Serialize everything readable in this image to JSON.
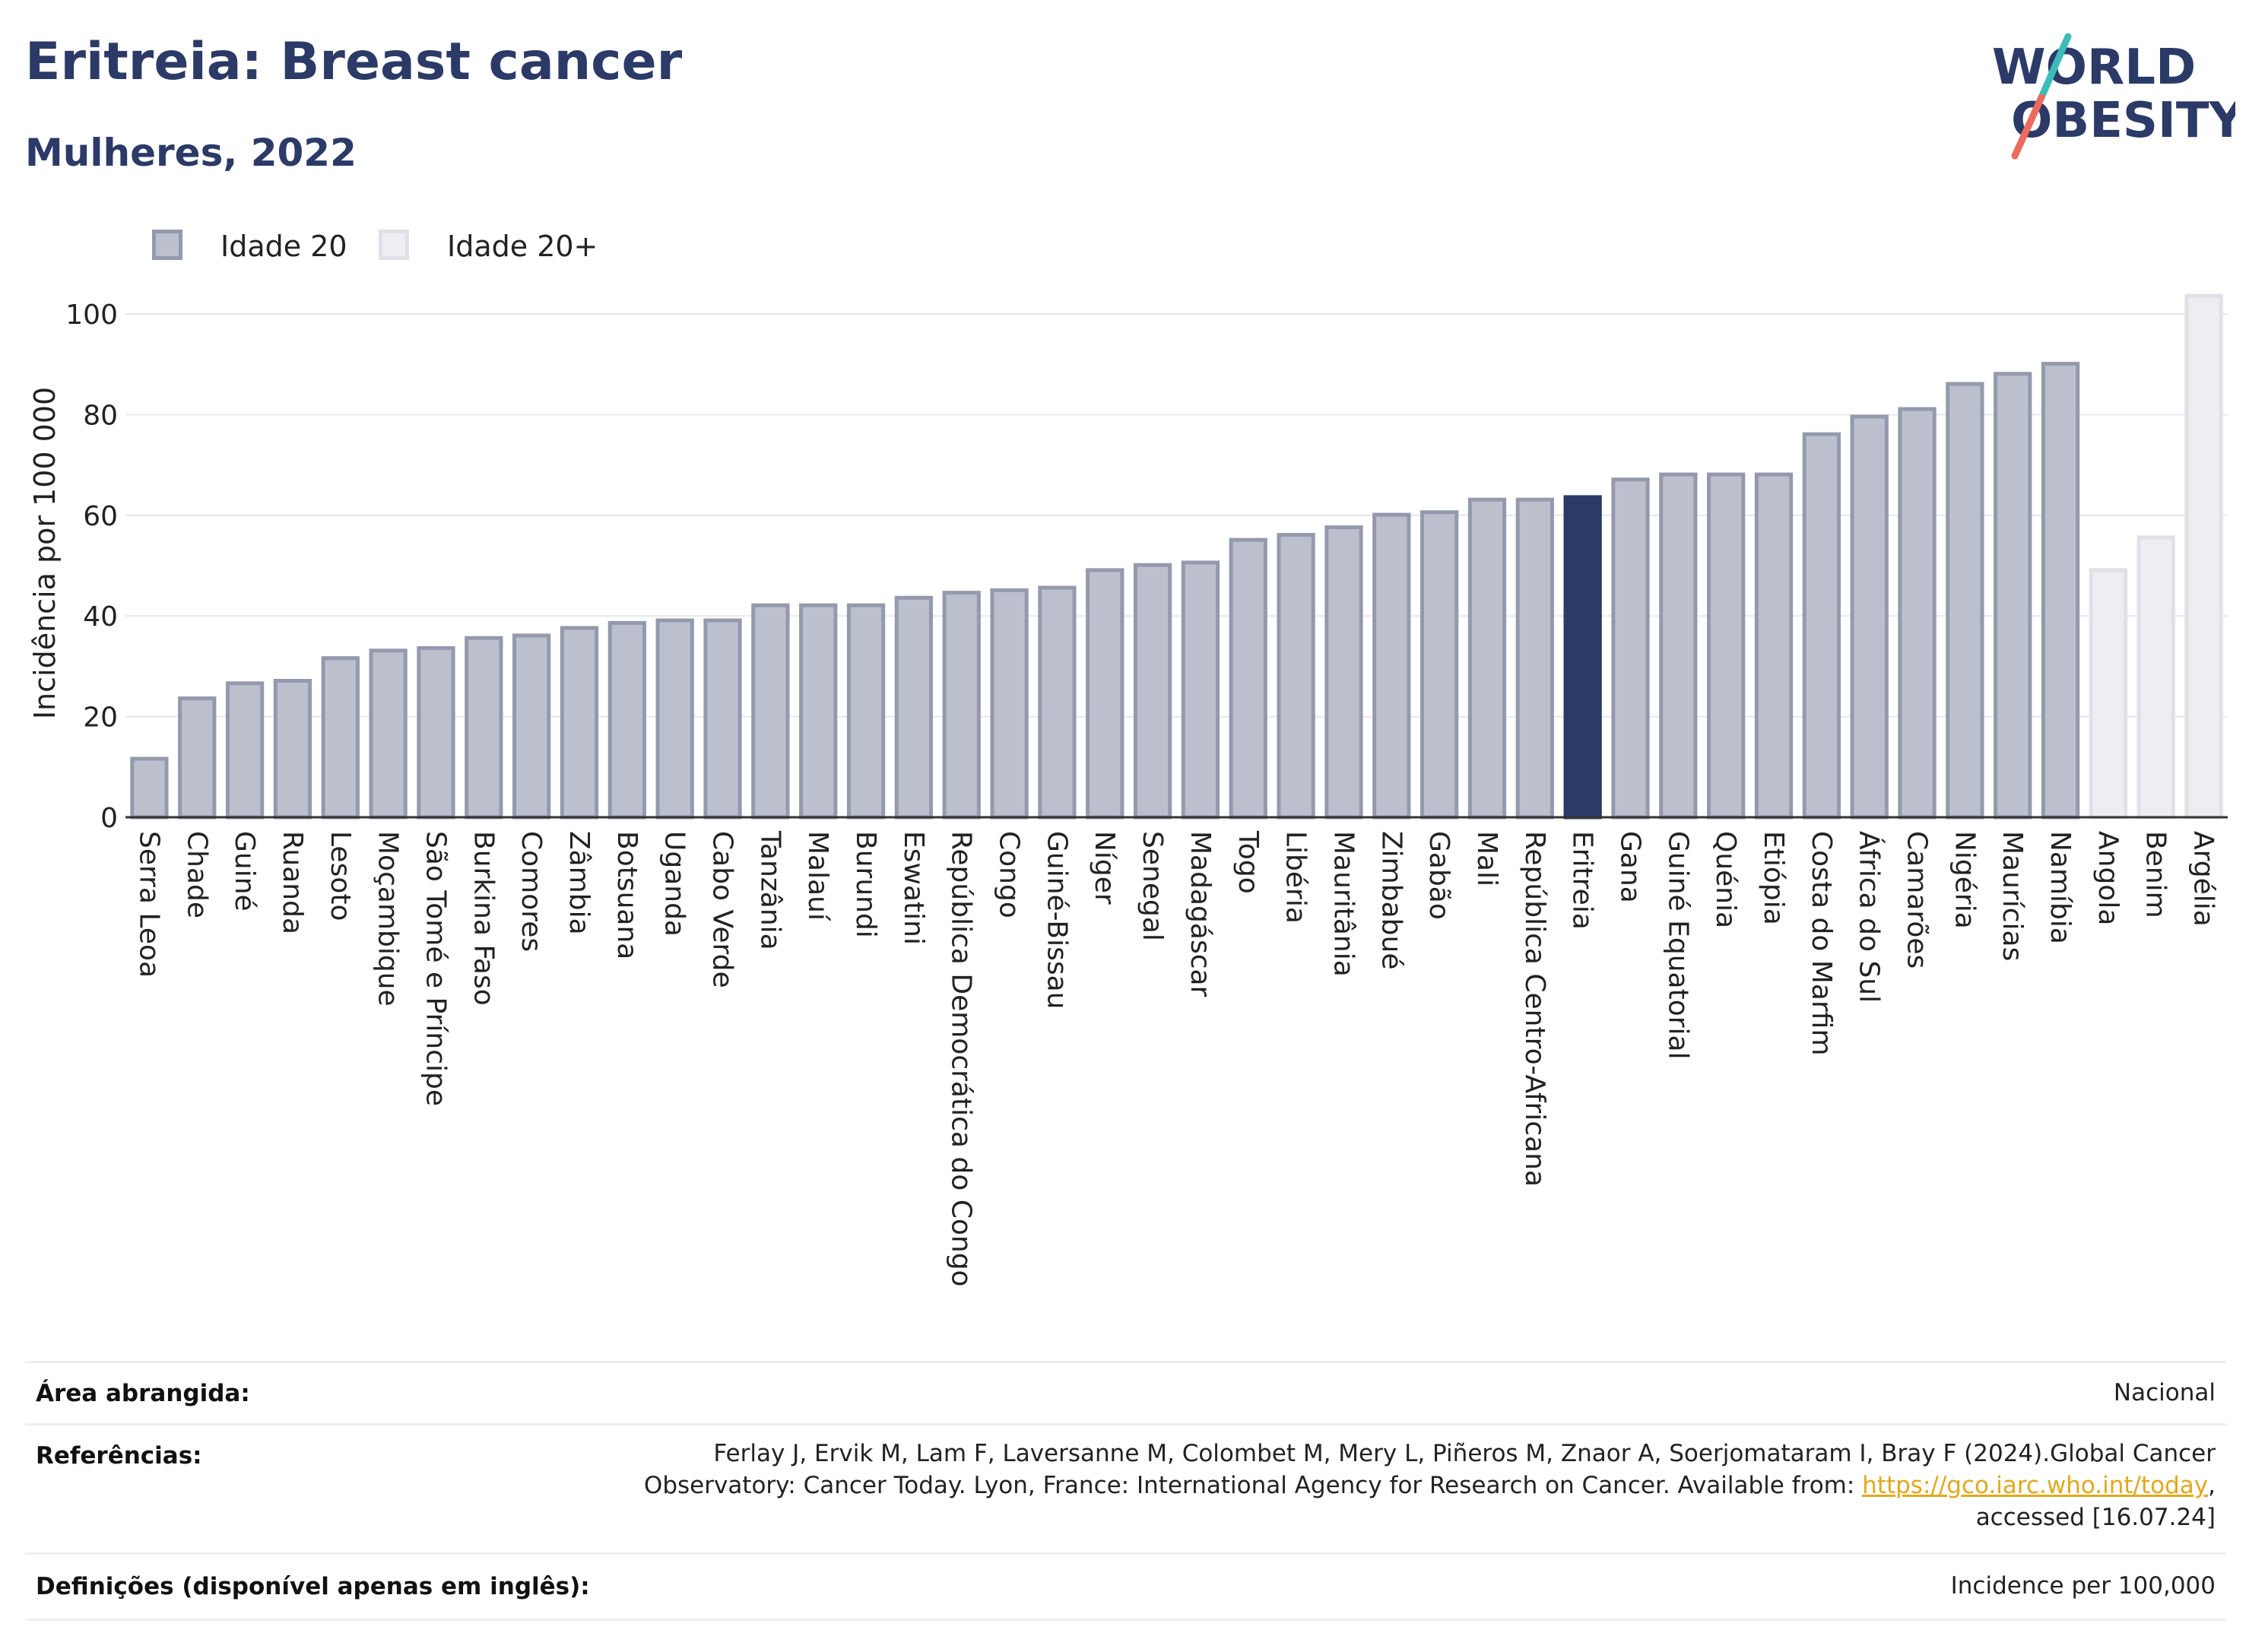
{
  "header": {
    "title": "Eritreia: Breast cancer",
    "subtitle": "Mulheres, 2022",
    "logo_line1": "WORLD",
    "logo_line2": "OBESITY"
  },
  "legend": {
    "items": [
      {
        "label": "Idade 20",
        "color": "#bcc0cd",
        "border": "#9499ae"
      },
      {
        "label": "Idade 20+",
        "color": "#eceef2",
        "border": "#dfe1e7"
      }
    ]
  },
  "colors": {
    "highlight": "#2b3a67",
    "age20_fill": "#bcc0cd",
    "age20_border": "#9499ae",
    "age20plus_fill": "#eceef2",
    "age20plus_border": "#dfe1e7",
    "grid": "#e6e8ee",
    "logo_slash_teal": "#3cbdb9",
    "logo_slash_coral": "#ec6b5e"
  },
  "chart_data": {
    "type": "bar",
    "ylabel": "Incidência por 100 000",
    "ylim": [
      0,
      105
    ],
    "yticks": [
      0,
      20,
      40,
      60,
      80,
      100
    ],
    "grid": true,
    "legend_position": "top-left",
    "highlight": "Eritreia",
    "categories": [
      "Serra Leoa",
      "Chade",
      "Guiné",
      "Ruanda",
      "Lesoto",
      "Moçambique",
      "São Tomé e Príncipe",
      "Burkina Faso",
      "Comores",
      "Zâmbia",
      "Botsuana",
      "Uganda",
      "Cabo Verde",
      "Tanzânia",
      "Malauí",
      "Burundi",
      "Eswatini",
      "República Democrática do Congo",
      "Congo",
      "Guiné-Bissau",
      "Níger",
      "Senegal",
      "Madagáscar",
      "Togo",
      "Libéria",
      "Mauritânia",
      "Zimbabué",
      "Gabão",
      "Mali",
      "República Centro-Africana",
      "Eritreia",
      "Gana",
      "Guiné Equatorial",
      "Quénia",
      "Etiópia",
      "Costa do Marfim",
      "África do Sul",
      "Camarões",
      "Nigéria",
      "Maurícias",
      "Namíbia",
      "Angola",
      "Benim",
      "Argélia"
    ],
    "values": [
      12,
      24,
      27,
      27.5,
      32,
      33.5,
      34,
      36,
      36.5,
      38,
      39,
      39.5,
      39.5,
      42.5,
      42.5,
      42.5,
      44,
      45,
      45.5,
      46,
      49.5,
      50.5,
      51,
      55.5,
      56.5,
      58,
      60.5,
      61,
      63.5,
      63.5,
      64,
      67.5,
      68.5,
      68.5,
      68.5,
      76.5,
      80,
      81.5,
      86.5,
      88.5,
      90.5,
      49.5,
      56,
      104
    ],
    "groups": [
      "Idade 20",
      "Idade 20",
      "Idade 20",
      "Idade 20",
      "Idade 20",
      "Idade 20",
      "Idade 20",
      "Idade 20",
      "Idade 20",
      "Idade 20",
      "Idade 20",
      "Idade 20",
      "Idade 20",
      "Idade 20",
      "Idade 20",
      "Idade 20",
      "Idade 20",
      "Idade 20",
      "Idade 20",
      "Idade 20",
      "Idade 20",
      "Idade 20",
      "Idade 20",
      "Idade 20",
      "Idade 20",
      "Idade 20",
      "Idade 20",
      "Idade 20",
      "Idade 20",
      "Idade 20",
      "Idade 20",
      "Idade 20",
      "Idade 20",
      "Idade 20",
      "Idade 20",
      "Idade 20",
      "Idade 20",
      "Idade 20",
      "Idade 20",
      "Idade 20",
      "Idade 20",
      "Idade 20+",
      "Idade 20+",
      "Idade 20+"
    ]
  },
  "info": {
    "area_label": "Área abrangida:",
    "area_value": "Nacional",
    "refs_label": "Referências:",
    "refs_line1": "Ferlay J, Ervik M, Lam F, Laversanne M, Colombet M, Mery L, Piñeros M, Znaor A, Soerjomataram I, Bray F (2024).Global Cancer",
    "refs_line2_text": "Observatory: Cancer Today. Lyon, France: International Agency for Research on Cancer. Available from: ",
    "refs_link": "https://gco.iarc.who.int/today",
    "refs_line2_end": ",",
    "refs_line3": "accessed [16.07.24]",
    "defs_label": "Definições (disponível apenas em inglês):",
    "defs_value": "Incidence per 100,000"
  }
}
